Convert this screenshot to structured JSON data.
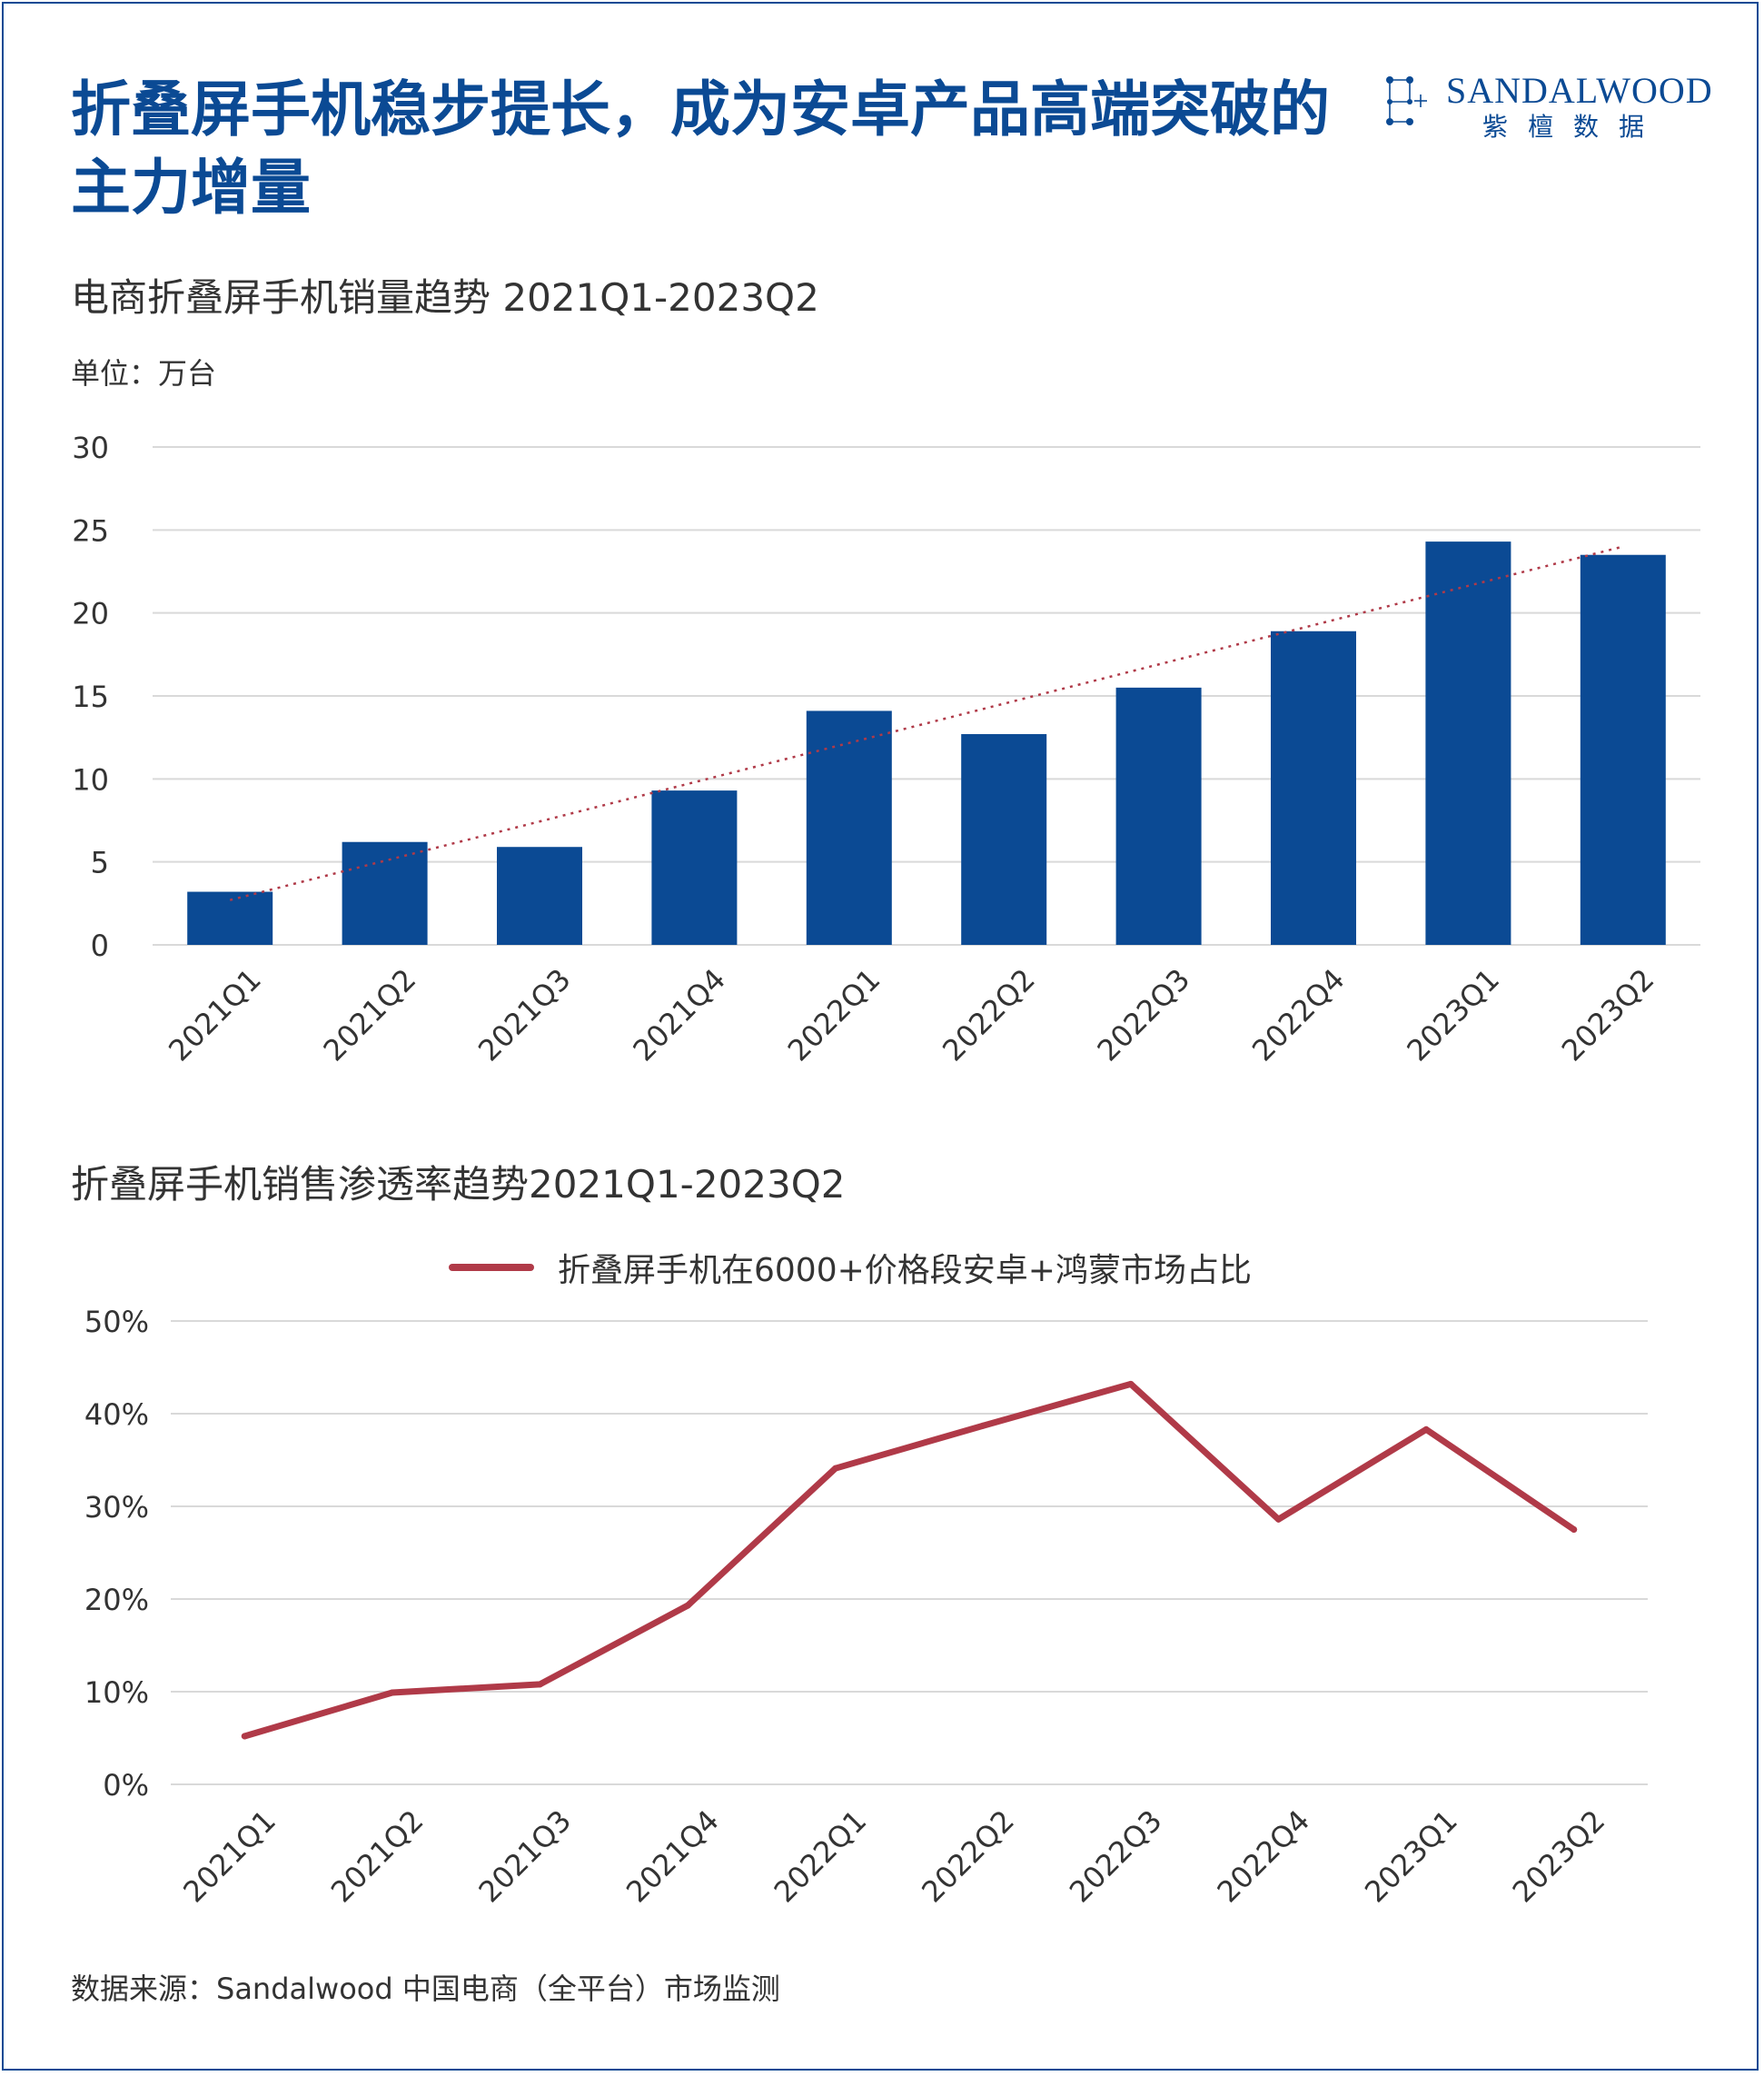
{
  "header": {
    "title": "折叠屏手机稳步提长，成为安卓产品高端突破的主力增量",
    "brand": {
      "name_en": "SANDALWOOD",
      "name_cn": "紫檀数据",
      "logo_icon": "sandalwood-constellation-logo"
    }
  },
  "colors": {
    "brand": "#0b4a94",
    "bar": "#0b4a94",
    "line": "#b03a48",
    "trend": "#b03a48",
    "grid": "#d9d9d9"
  },
  "chart_data": [
    {
      "type": "bar",
      "title": "电商折叠屏手机销量趋势 2021Q1-2023Q2",
      "unit_label": "单位：万台",
      "categories": [
        "2021Q1",
        "2021Q2",
        "2021Q3",
        "2021Q4",
        "2022Q1",
        "2022Q2",
        "2022Q3",
        "2022Q4",
        "2023Q1",
        "2023Q2"
      ],
      "values": [
        3.2,
        6.2,
        5.9,
        9.3,
        14.1,
        12.7,
        15.5,
        18.9,
        24.3,
        23.5
      ],
      "yticks": [
        "0",
        "5",
        "10",
        "15",
        "20",
        "25",
        "30"
      ],
      "ylim": [
        0,
        30
      ],
      "trendline": {
        "type": "linear",
        "style": "dotted",
        "start": 2.7,
        "end": 24.0
      },
      "grid": true,
      "legend": "none"
    },
    {
      "type": "line",
      "title": "折叠屏手机销售渗透率趋势2021Q1-2023Q2",
      "categories": [
        "2021Q1",
        "2021Q2",
        "2021Q3",
        "2021Q4",
        "2022Q1",
        "2022Q2",
        "2022Q3",
        "2022Q4",
        "2023Q1",
        "2023Q2"
      ],
      "series": [
        {
          "name": "折叠屏手机在6000+价格段安卓+鸿蒙市场占比",
          "values": [
            5.2,
            9.9,
            10.8,
            19.3,
            34.1,
            38.7,
            43.2,
            28.6,
            38.3,
            27.5
          ]
        }
      ],
      "yticks": [
        "0%",
        "10%",
        "20%",
        "30%",
        "40%",
        "50%"
      ],
      "ylim": [
        0,
        50
      ],
      "grid": true,
      "legend": "top-center"
    }
  ],
  "footer": {
    "source": "数据来源：Sandalwood 中国电商（全平台）市场监测"
  }
}
